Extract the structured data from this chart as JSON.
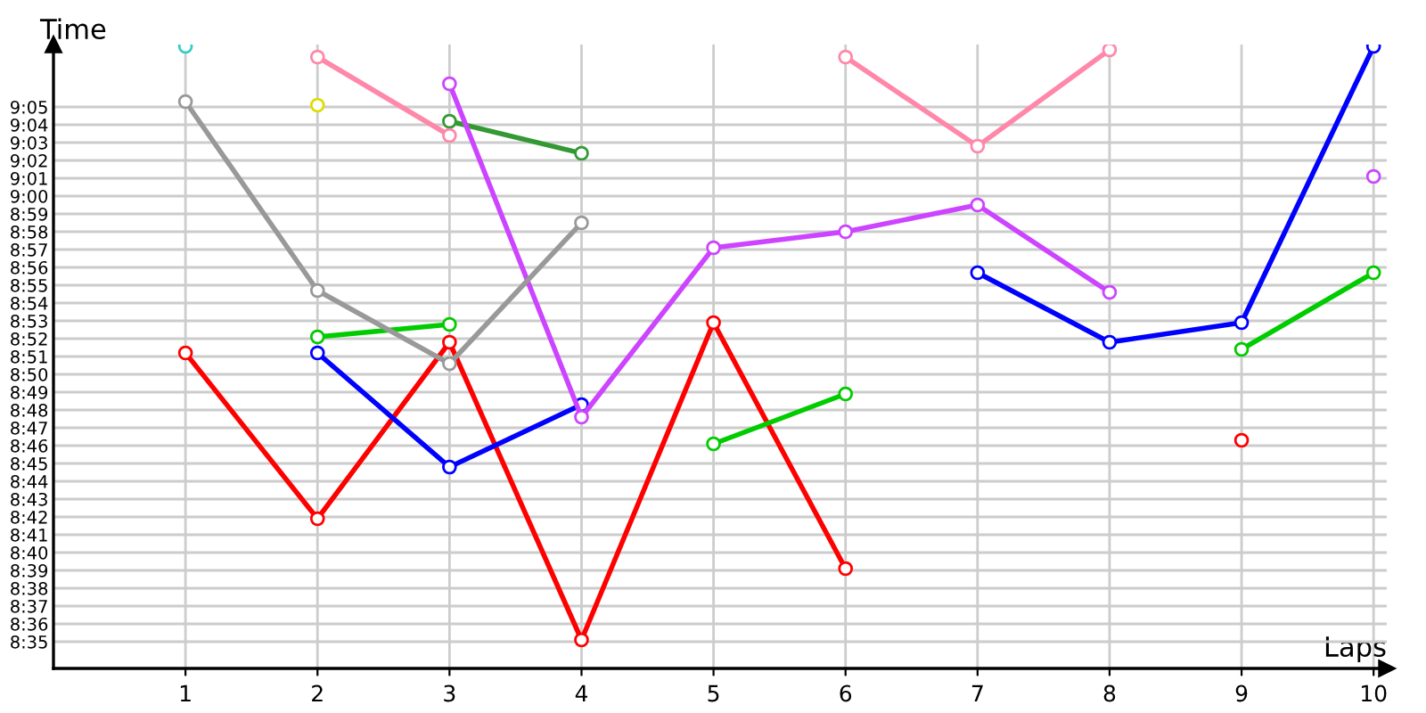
{
  "chart_data": {
    "type": "line",
    "xlabel": "Laps",
    "ylabel": "Time",
    "x": [
      1,
      2,
      3,
      4,
      5,
      6,
      7,
      8,
      9,
      10
    ],
    "xlim": [
      0,
      10.1
    ],
    "xticks": [
      1,
      2,
      3,
      4,
      5,
      6,
      7,
      8,
      9,
      10
    ],
    "ylim": [
      513.5,
      548.5
    ],
    "yticks": [
      {
        "value": 515,
        "label": "8:35"
      },
      {
        "value": 516,
        "label": "8:36"
      },
      {
        "value": 517,
        "label": "8:37"
      },
      {
        "value": 518,
        "label": "8:38"
      },
      {
        "value": 519,
        "label": "8:39"
      },
      {
        "value": 520,
        "label": "8:40"
      },
      {
        "value": 521,
        "label": "8:41"
      },
      {
        "value": 522,
        "label": "8:42"
      },
      {
        "value": 523,
        "label": "8:43"
      },
      {
        "value": 524,
        "label": "8:44"
      },
      {
        "value": 525,
        "label": "8:45"
      },
      {
        "value": 526,
        "label": "8:46"
      },
      {
        "value": 527,
        "label": "8:47"
      },
      {
        "value": 528,
        "label": "8:48"
      },
      {
        "value": 529,
        "label": "8:49"
      },
      {
        "value": 530,
        "label": "8:50"
      },
      {
        "value": 531,
        "label": "8:51"
      },
      {
        "value": 532,
        "label": "8:52"
      },
      {
        "value": 533,
        "label": "8:53"
      },
      {
        "value": 534,
        "label": "8:54"
      },
      {
        "value": 535,
        "label": "8:55"
      },
      {
        "value": 536,
        "label": "8:56"
      },
      {
        "value": 537,
        "label": "8:57"
      },
      {
        "value": 538,
        "label": "8:58"
      },
      {
        "value": 539,
        "label": "8:59"
      },
      {
        "value": 540,
        "label": "9:00"
      },
      {
        "value": 541,
        "label": "9:01"
      },
      {
        "value": 542,
        "label": "9:02"
      },
      {
        "value": 543,
        "label": "9:03"
      },
      {
        "value": 544,
        "label": "9:04"
      },
      {
        "value": 545,
        "label": "9:05"
      }
    ],
    "grid": true,
    "marker": "circle",
    "line_style": "solid",
    "series": [
      {
        "color": "#ff0000",
        "values": [
          531.2,
          521.9,
          531.8,
          515.1,
          532.9,
          519.1,
          null,
          null,
          526.3,
          null
        ]
      },
      {
        "color": "#0000ff",
        "values": [
          null,
          531.2,
          524.8,
          528.3,
          null,
          null,
          535.7,
          531.8,
          532.9,
          548.4
        ]
      },
      {
        "color": "#00cc00",
        "values": [
          null,
          532.1,
          532.8,
          null,
          526.1,
          528.9,
          null,
          null,
          531.4,
          535.7
        ]
      },
      {
        "color": "#339933",
        "values": [
          null,
          null,
          544.2,
          542.4,
          null,
          null,
          null,
          null,
          null,
          null
        ]
      },
      {
        "color": "#cc44ff",
        "values": [
          null,
          null,
          546.3,
          527.6,
          537.1,
          538.0,
          539.5,
          534.6,
          null,
          541.1
        ]
      },
      {
        "color": "#ff88aa",
        "values": [
          null,
          547.8,
          543.4,
          null,
          null,
          547.8,
          542.8,
          548.2,
          null,
          null
        ]
      },
      {
        "color": "#999999",
        "values": [
          545.3,
          534.7,
          530.6,
          538.5,
          null,
          null,
          null,
          null,
          null,
          null
        ]
      },
      {
        "color": "#dddd00",
        "values": [
          null,
          545.1,
          null,
          null,
          null,
          null,
          null,
          null,
          null,
          null
        ]
      },
      {
        "color": "#33cccc",
        "values": [
          548.4,
          null,
          null,
          null,
          null,
          null,
          null,
          null,
          null,
          null
        ]
      }
    ]
  }
}
